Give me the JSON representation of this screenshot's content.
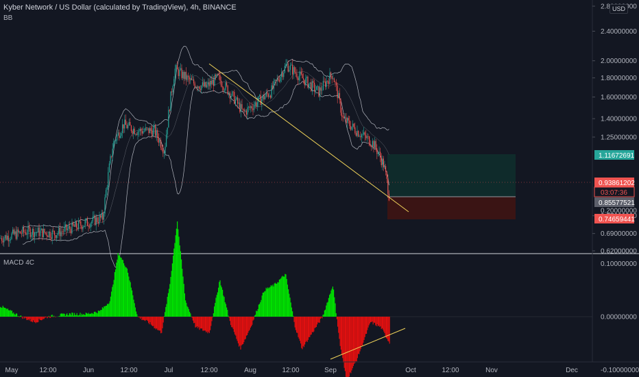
{
  "header": {
    "title": "Kyber Network / US Dollar (calculated by TradingView), 4h, BINANCE",
    "indicator_main": "BB",
    "indicator_sub": "MACD 4C",
    "currency": "USD"
  },
  "colors": {
    "background": "#131722",
    "up": "#26a69a",
    "down": "#ef5350",
    "bollinger": "#b2b5be",
    "trendline": "#f0d35a",
    "macd_up": "#00e000",
    "macd_down": "#e01010",
    "target_zone": "#0f2b2b",
    "stop_zone": "#3a1414"
  },
  "chart_data": [
    {
      "type": "candlestick",
      "interval": "4h",
      "overlays": [
        "Bollinger Bands",
        "yellow trendline",
        "long position tool"
      ],
      "y_scale": "log",
      "ylim": [
        0.6,
        2.8
      ],
      "y_ticks": [
        "2.80000000",
        "2.40000000",
        "2.00000000",
        "1.80000000",
        "1.60000000",
        "1.40000000",
        "1.25000000",
        "0.77000000",
        "0.69000000",
        "0.62000000"
      ],
      "x_ticks": [
        "May",
        "12:00",
        "Jun",
        "12:00",
        "Jul",
        "12:00",
        "Aug",
        "12:00",
        "Sep",
        "Oct",
        "12:00",
        "Nov",
        "Dec"
      ],
      "close_path": [
        {
          "x": 0,
          "y": 0.67
        },
        {
          "x": 40,
          "y": 0.7
        },
        {
          "x": 80,
          "y": 0.69
        },
        {
          "x": 110,
          "y": 0.72
        },
        {
          "x": 150,
          "y": 0.76
        },
        {
          "x": 165,
          "y": 1.2
        },
        {
          "x": 180,
          "y": 1.35
        },
        {
          "x": 200,
          "y": 1.3
        },
        {
          "x": 225,
          "y": 1.3
        },
        {
          "x": 240,
          "y": 1.15
        },
        {
          "x": 255,
          "y": 1.9
        },
        {
          "x": 280,
          "y": 1.75
        },
        {
          "x": 300,
          "y": 1.7
        },
        {
          "x": 318,
          "y": 1.8
        },
        {
          "x": 340,
          "y": 1.6
        },
        {
          "x": 355,
          "y": 1.45
        },
        {
          "x": 375,
          "y": 1.55
        },
        {
          "x": 395,
          "y": 1.65
        },
        {
          "x": 418,
          "y": 1.95
        },
        {
          "x": 440,
          "y": 1.8
        },
        {
          "x": 465,
          "y": 1.65
        },
        {
          "x": 485,
          "y": 1.85
        },
        {
          "x": 500,
          "y": 1.4
        },
        {
          "x": 520,
          "y": 1.3
        },
        {
          "x": 545,
          "y": 1.2
        },
        {
          "x": 560,
          "y": 1.05
        },
        {
          "x": 568,
          "y": 0.86
        }
      ],
      "price_tags": [
        {
          "label": "1.11672691",
          "meaning": "take profit",
          "color": "#26a69a"
        },
        {
          "label": "0.93861202",
          "meaning": "current price",
          "color": "#ef5350"
        },
        {
          "label": "03:07:36",
          "meaning": "bar countdown",
          "color": "#ef5350"
        },
        {
          "label": "0.85577521",
          "meaning": "entry",
          "color": "#787b86"
        },
        {
          "label": "0.74659441",
          "meaning": "stop loss",
          "color": "#ef5350"
        }
      ]
    },
    {
      "type": "histogram",
      "indicator": "MACD 4C",
      "ylim": [
        -0.12,
        0.2
      ],
      "y_ticks": [
        "0.20000000",
        "0.10000000",
        "0.00000000",
        "-0.10000000"
      ],
      "histogram_path": [
        {
          "x": 0,
          "y": 0.02
        },
        {
          "x": 15,
          "y": 0.01
        },
        {
          "x": 30,
          "y": 0.0
        },
        {
          "x": 50,
          "y": -0.01
        },
        {
          "x": 70,
          "y": 0.0
        },
        {
          "x": 100,
          "y": 0.005
        },
        {
          "x": 125,
          "y": 0.005
        },
        {
          "x": 145,
          "y": 0.01
        },
        {
          "x": 160,
          "y": 0.03
        },
        {
          "x": 172,
          "y": 0.12
        },
        {
          "x": 185,
          "y": 0.09
        },
        {
          "x": 200,
          "y": 0.0
        },
        {
          "x": 215,
          "y": -0.01
        },
        {
          "x": 235,
          "y": -0.03
        },
        {
          "x": 247,
          "y": 0.06
        },
        {
          "x": 258,
          "y": 0.18
        },
        {
          "x": 270,
          "y": 0.03
        },
        {
          "x": 285,
          "y": -0.02
        },
        {
          "x": 305,
          "y": -0.03
        },
        {
          "x": 320,
          "y": 0.07
        },
        {
          "x": 335,
          "y": -0.01
        },
        {
          "x": 350,
          "y": -0.06
        },
        {
          "x": 365,
          "y": -0.02
        },
        {
          "x": 385,
          "y": 0.05
        },
        {
          "x": 400,
          "y": 0.06
        },
        {
          "x": 416,
          "y": 0.08
        },
        {
          "x": 430,
          "y": -0.02
        },
        {
          "x": 440,
          "y": -0.06
        },
        {
          "x": 455,
          "y": -0.03
        },
        {
          "x": 470,
          "y": 0.0
        },
        {
          "x": 485,
          "y": 0.06
        },
        {
          "x": 495,
          "y": -0.05
        },
        {
          "x": 505,
          "y": -0.12
        },
        {
          "x": 520,
          "y": -0.08
        },
        {
          "x": 540,
          "y": -0.01
        },
        {
          "x": 555,
          "y": -0.02
        },
        {
          "x": 568,
          "y": -0.05
        }
      ]
    }
  ]
}
